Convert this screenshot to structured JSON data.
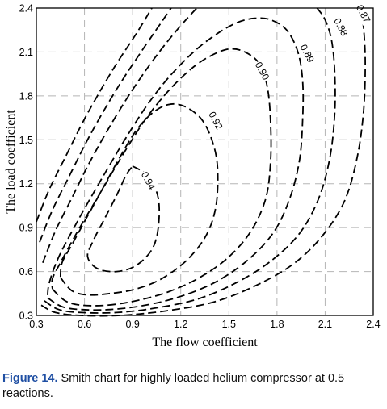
{
  "chart_data": {
    "type": "contour",
    "title": "",
    "xlabel": "The flow coefficient",
    "ylabel": "The load coefficient",
    "xlim": [
      0.3,
      2.4
    ],
    "ylim": [
      0.3,
      2.4
    ],
    "xticks": [
      "0.3",
      "0.6",
      "0.9",
      "1.2",
      "1.5",
      "1.8",
      "2.1",
      "2.4"
    ],
    "yticks": [
      "0.3",
      "0.6",
      "0.9",
      "1.2",
      "1.5",
      "1.8",
      "2.1",
      "2.4"
    ],
    "grid": true,
    "line_style": "dashed",
    "contours": [
      {
        "level": "0.94",
        "points": [
          [
            0.9,
            1.32
          ],
          [
            1.0,
            1.25
          ],
          [
            1.06,
            1.1
          ],
          [
            1.06,
            0.9
          ],
          [
            1.02,
            0.75
          ],
          [
            0.92,
            0.64
          ],
          [
            0.8,
            0.6
          ],
          [
            0.68,
            0.62
          ],
          [
            0.62,
            0.7
          ],
          [
            0.65,
            0.8
          ],
          [
            0.72,
            0.95
          ],
          [
            0.8,
            1.12
          ],
          [
            0.86,
            1.26
          ],
          [
            0.9,
            1.32
          ]
        ],
        "label_at": [
          0.98,
          1.21
        ]
      },
      {
        "level": "0.92",
        "points": [
          [
            0.45,
            0.56
          ],
          [
            0.52,
            0.47
          ],
          [
            0.62,
            0.44
          ],
          [
            0.76,
            0.45
          ],
          [
            0.92,
            0.48
          ],
          [
            1.08,
            0.55
          ],
          [
            1.24,
            0.68
          ],
          [
            1.36,
            0.85
          ],
          [
            1.42,
            1.05
          ],
          [
            1.43,
            1.3
          ],
          [
            1.4,
            1.48
          ],
          [
            1.33,
            1.64
          ],
          [
            1.22,
            1.73
          ],
          [
            1.12,
            1.74
          ],
          [
            1.02,
            1.68
          ],
          [
            0.92,
            1.56
          ],
          [
            0.82,
            1.38
          ],
          [
            0.72,
            1.18
          ],
          [
            0.62,
            0.98
          ],
          [
            0.52,
            0.78
          ],
          [
            0.46,
            0.66
          ],
          [
            0.45,
            0.56
          ]
        ],
        "label_at": [
          1.4,
          1.62
        ]
      },
      {
        "level": "0.90",
        "points": [
          [
            0.4,
            0.48
          ],
          [
            0.48,
            0.4
          ],
          [
            0.58,
            0.37
          ],
          [
            0.74,
            0.37
          ],
          [
            0.92,
            0.4
          ],
          [
            1.12,
            0.46
          ],
          [
            1.32,
            0.56
          ],
          [
            1.5,
            0.7
          ],
          [
            1.64,
            0.88
          ],
          [
            1.73,
            1.1
          ],
          [
            1.76,
            1.35
          ],
          [
            1.76,
            1.62
          ],
          [
            1.74,
            1.86
          ],
          [
            1.69,
            2.02
          ],
          [
            1.6,
            2.1
          ],
          [
            1.5,
            2.12
          ],
          [
            1.38,
            2.07
          ],
          [
            1.26,
            1.98
          ],
          [
            1.12,
            1.83
          ],
          [
            0.98,
            1.64
          ],
          [
            0.84,
            1.4
          ],
          [
            0.7,
            1.14
          ],
          [
            0.56,
            0.88
          ],
          [
            0.45,
            0.66
          ],
          [
            0.4,
            0.55
          ],
          [
            0.4,
            0.48
          ]
        ],
        "label_at": [
          1.69,
          1.96
        ]
      },
      {
        "level": "0.89",
        "points": [
          [
            0.37,
            0.42
          ],
          [
            0.46,
            0.36
          ],
          [
            0.58,
            0.34
          ],
          [
            0.76,
            0.34
          ],
          [
            0.98,
            0.37
          ],
          [
            1.2,
            0.43
          ],
          [
            1.42,
            0.53
          ],
          [
            1.62,
            0.68
          ],
          [
            1.78,
            0.87
          ],
          [
            1.88,
            1.1
          ],
          [
            1.94,
            1.36
          ],
          [
            1.96,
            1.64
          ],
          [
            1.96,
            1.9
          ],
          [
            1.93,
            2.1
          ],
          [
            1.86,
            2.25
          ],
          [
            1.76,
            2.32
          ],
          [
            1.66,
            2.33
          ],
          [
            1.55,
            2.3
          ],
          [
            1.42,
            2.22
          ],
          [
            1.28,
            2.1
          ],
          [
            1.12,
            1.92
          ],
          [
            0.98,
            1.72
          ],
          [
            0.84,
            1.48
          ],
          [
            0.7,
            1.22
          ],
          [
            0.56,
            0.95
          ],
          [
            0.44,
            0.7
          ],
          [
            0.38,
            0.52
          ],
          [
            0.37,
            0.42
          ]
        ],
        "label_at": [
          1.97,
          2.08
        ]
      },
      {
        "level": "0.88",
        "points": [
          [
            0.35,
            0.4
          ],
          [
            0.44,
            0.34
          ],
          [
            0.58,
            0.32
          ],
          [
            0.8,
            0.32
          ],
          [
            1.04,
            0.35
          ],
          [
            1.3,
            0.41
          ],
          [
            1.54,
            0.52
          ],
          [
            1.76,
            0.67
          ],
          [
            1.94,
            0.86
          ],
          [
            2.06,
            1.1
          ],
          [
            2.13,
            1.38
          ],
          [
            2.16,
            1.68
          ],
          [
            2.16,
            1.96
          ],
          [
            2.14,
            2.18
          ],
          [
            2.1,
            2.32
          ],
          [
            2.05,
            2.4
          ]
        ],
        "label_at": [
          2.18,
          2.26
        ]
      },
      {
        "level": "0.87",
        "points": [
          [
            0.33,
            0.37
          ],
          [
            0.42,
            0.32
          ],
          [
            0.58,
            0.3
          ],
          [
            0.82,
            0.3
          ],
          [
            1.1,
            0.33
          ],
          [
            1.4,
            0.39
          ],
          [
            1.66,
            0.5
          ],
          [
            1.9,
            0.65
          ],
          [
            2.08,
            0.84
          ],
          [
            2.22,
            1.08
          ],
          [
            2.3,
            1.38
          ],
          [
            2.34,
            1.7
          ],
          [
            2.35,
            2.02
          ],
          [
            2.34,
            2.26
          ],
          [
            2.32,
            2.4
          ]
        ],
        "label_at": [
          2.32,
          2.35
        ]
      },
      {
        "level": "",
        "points": [
          [
            0.34,
            0.66
          ],
          [
            0.42,
            0.88
          ],
          [
            0.52,
            1.1
          ],
          [
            0.62,
            1.32
          ],
          [
            0.72,
            1.52
          ],
          [
            0.84,
            1.74
          ],
          [
            0.96,
            1.94
          ],
          [
            1.08,
            2.12
          ],
          [
            1.2,
            2.28
          ],
          [
            1.3,
            2.4
          ]
        ],
        "label_at": null
      },
      {
        "level": "",
        "points": [
          [
            0.32,
            0.8
          ],
          [
            0.4,
            1.02
          ],
          [
            0.5,
            1.24
          ],
          [
            0.6,
            1.46
          ],
          [
            0.7,
            1.66
          ],
          [
            0.82,
            1.88
          ],
          [
            0.94,
            2.08
          ],
          [
            1.04,
            2.24
          ],
          [
            1.14,
            2.4
          ]
        ],
        "label_at": null
      },
      {
        "level": "",
        "points": [
          [
            0.3,
            0.94
          ],
          [
            0.38,
            1.16
          ],
          [
            0.48,
            1.38
          ],
          [
            0.58,
            1.6
          ],
          [
            0.68,
            1.8
          ],
          [
            0.8,
            2.02
          ],
          [
            0.92,
            2.22
          ],
          [
            1.02,
            2.4
          ]
        ],
        "label_at": null
      }
    ]
  },
  "caption": {
    "figure_label": "Figure 14.",
    "text": " Smith chart for highly loaded helium compressor at 0.5 reactions."
  }
}
